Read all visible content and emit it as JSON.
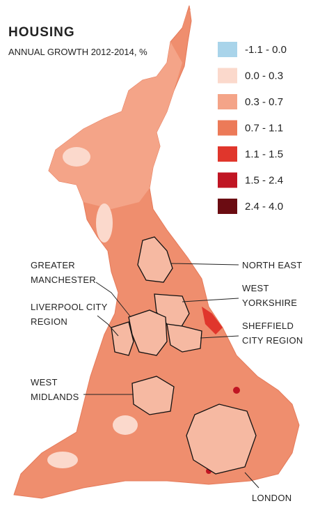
{
  "header": {
    "title": "HOUSING",
    "subtitle": "ANNUAL GROWTH 2012-2014, %"
  },
  "legend": [
    {
      "label": "-1.1 - 0.0",
      "color": "#a9d4ea"
    },
    {
      "label": "0.0 - 0.3",
      "color": "#fbd9cc"
    },
    {
      "label": "0.3 - 0.7",
      "color": "#f4a488"
    },
    {
      "label": "0.7 - 1.1",
      "color": "#ec7a58"
    },
    {
      "label": "1.1 - 1.5",
      "color": "#e0362c"
    },
    {
      "label": "1.5 - 2.4",
      "color": "#c01523"
    },
    {
      "label": "2.4 - 4.0",
      "color": "#6b0c12"
    }
  ],
  "regions": [
    {
      "lines": [
        "NORTH EAST"
      ]
    },
    {
      "lines": [
        "WEST",
        "YORKSHIRE"
      ]
    },
    {
      "lines": [
        "SHEFFIELD",
        "CITY REGION"
      ]
    },
    {
      "lines": [
        "GREATER",
        "MANCHESTER"
      ]
    },
    {
      "lines": [
        "LIVERPOOL CITY",
        "REGION"
      ]
    },
    {
      "lines": [
        "WEST",
        "MIDLANDS"
      ]
    },
    {
      "lines": [
        "LONDON"
      ]
    }
  ]
}
